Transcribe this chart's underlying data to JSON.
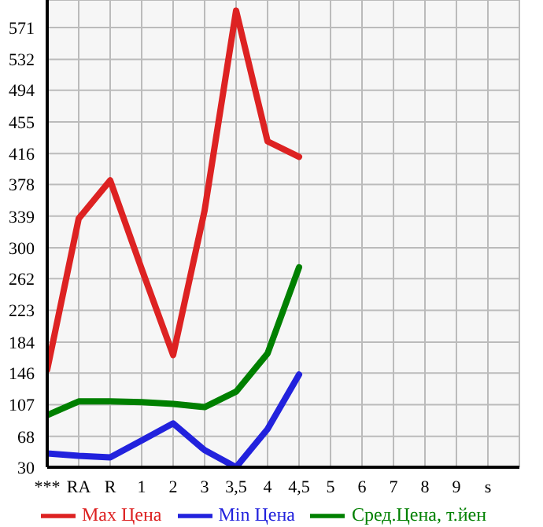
{
  "chart_data": {
    "type": "line",
    "categories": [
      "***",
      "RA",
      "R",
      "1",
      "2",
      "3",
      "3,5",
      "4",
      "4,5",
      "5",
      "6",
      "7",
      "8",
      "9",
      "s"
    ],
    "series": [
      {
        "name": "Max Цена",
        "color": "#dd2222",
        "values": [
          150,
          336,
          383,
          274,
          168,
          346,
          592,
          431,
          412,
          null,
          null,
          null,
          null,
          null,
          null
        ]
      },
      {
        "name": "Min Цена",
        "color": "#2222dd",
        "values": [
          47,
          44,
          42,
          63,
          84,
          51,
          30,
          77,
          144,
          null,
          null,
          null,
          null,
          null,
          null
        ]
      },
      {
        "name": "Сред.Цена, т.йен",
        "color": "#008000",
        "values": [
          94,
          111,
          111,
          110,
          108,
          104,
          123,
          170,
          276,
          null,
          null,
          null,
          null,
          null,
          null
        ]
      }
    ],
    "ylim": [
      30,
      605
    ],
    "yticks": [
      30,
      68,
      107,
      146,
      184,
      223,
      262,
      300,
      339,
      378,
      416,
      455,
      494,
      532,
      571
    ],
    "grid": true,
    "legend": "bottom",
    "marker": "none",
    "line_style": "solid"
  }
}
